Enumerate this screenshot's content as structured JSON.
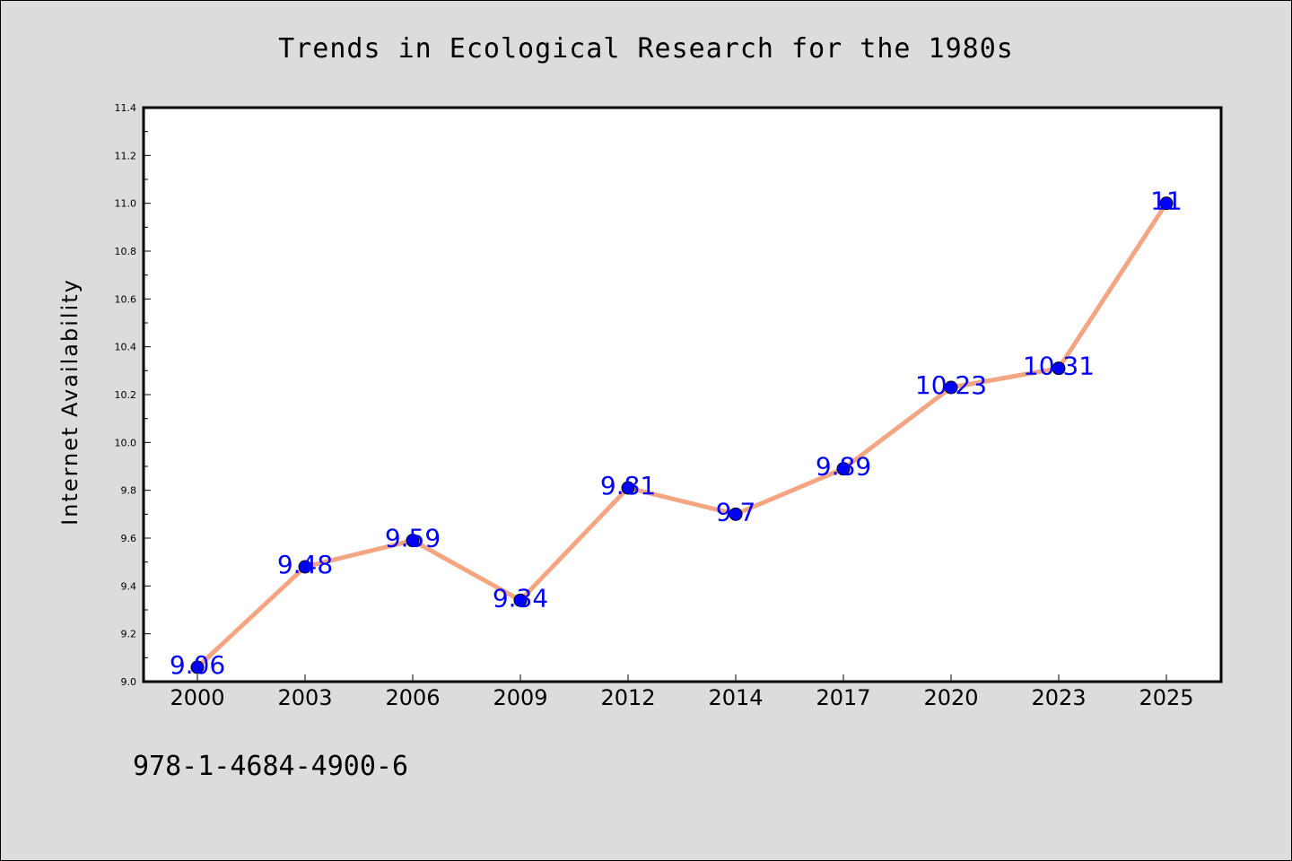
{
  "chart_data": {
    "type": "line",
    "title": "Trends in Ecological Research for the 1980s",
    "xlabel": "",
    "ylabel": "Internet Availability",
    "categories": [
      "2000",
      "2003",
      "2006",
      "2009",
      "2012",
      "2014",
      "2017",
      "2020",
      "2023",
      "2025"
    ],
    "series": [
      {
        "values": [
          9.06,
          9.48,
          9.59,
          9.34,
          9.81,
          9.7,
          9.89,
          10.23,
          10.31,
          11
        ],
        "labels": [
          "9.06",
          "9.48",
          "9.59",
          "9.34",
          "9.81",
          "9.7",
          "9.89",
          "10.23",
          "10.31",
          "11"
        ]
      }
    ],
    "ylim": [
      9.0,
      11.4
    ],
    "yticks": [
      "9.0",
      "9.2",
      "9.4",
      "9.6",
      "9.8",
      "10.0",
      "10.2",
      "10.4",
      "10.6",
      "10.8",
      "11.0",
      "11.2",
      "11.4"
    ],
    "line_color": "#f4a582",
    "marker_color": "#0000ff",
    "label_color": "#0000ff",
    "grid": false,
    "legend": "none"
  },
  "footer_text": "978-1-4684-4900-6"
}
